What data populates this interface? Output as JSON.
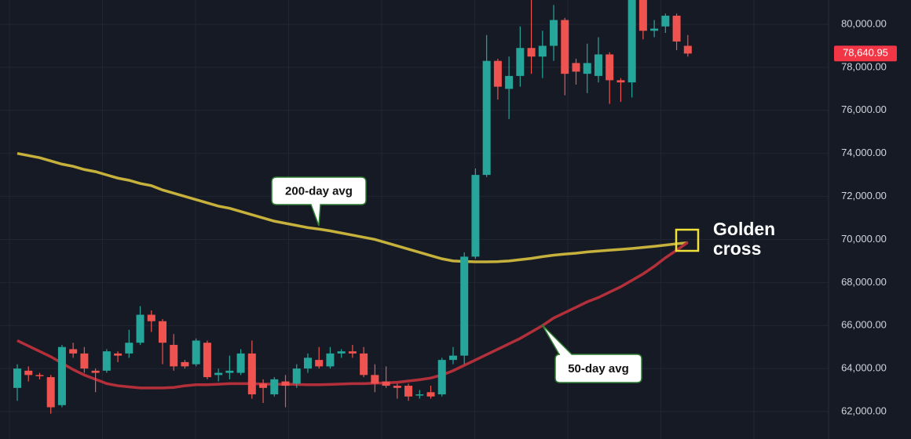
{
  "chart_data": {
    "type": "candlestick",
    "categories": [
      null,
      null,
      null,
      null,
      null,
      null,
      null,
      null,
      null,
      null,
      null,
      null,
      null,
      null,
      null,
      null,
      null,
      null,
      null,
      null,
      null,
      null,
      null,
      null,
      null,
      null,
      null,
      null,
      null,
      null,
      null,
      null,
      null,
      null,
      null,
      null,
      null,
      null,
      null,
      null,
      null,
      null,
      null,
      null,
      null,
      null,
      null,
      null,
      null,
      null,
      null,
      null,
      null,
      null,
      null,
      null,
      null,
      null,
      null,
      null,
      null
    ],
    "open": [
      63100,
      63900,
      63700,
      63600,
      62300,
      64900,
      64700,
      63900,
      63900,
      64700,
      64700,
      65200,
      66500,
      66200,
      65100,
      64300,
      64200,
      65200,
      63700,
      63800,
      63800,
      64700,
      63300,
      62800,
      63400,
      63300,
      64000,
      64400,
      64100,
      64700,
      64800,
      64700,
      63700,
      63400,
      63200,
      63200,
      62800,
      62900,
      62800,
      64400,
      64600,
      69200,
      73000,
      78300,
      77000,
      77600,
      78900,
      78500,
      79000,
      80200,
      78200,
      77700,
      77600,
      78600,
      77400,
      77300,
      81600,
      79700,
      79900,
      80400,
      79000
    ],
    "high": [
      64200,
      64100,
      63800,
      63700,
      65100,
      65200,
      65000,
      64000,
      64900,
      64800,
      65800,
      66900,
      66700,
      66300,
      65600,
      64400,
      65400,
      65300,
      64000,
      64600,
      64900,
      65300,
      63500,
      63600,
      63700,
      64200,
      64700,
      65000,
      65000,
      64900,
      65100,
      65000,
      64200,
      64100,
      63300,
      63300,
      63000,
      63200,
      64500,
      65000,
      69400,
      73300,
      79500,
      78400,
      78500,
      79900,
      81200,
      79700,
      80900,
      80300,
      78400,
      79100,
      79400,
      78700,
      77500,
      82000,
      81800,
      80200,
      80500,
      80500,
      79500
    ],
    "low": [
      62500,
      63400,
      63500,
      61900,
      62200,
      64500,
      63800,
      62900,
      63800,
      64300,
      64500,
      65100,
      65700,
      64200,
      63900,
      64000,
      64100,
      63500,
      63400,
      63500,
      63700,
      62600,
      62400,
      62700,
      62200,
      63100,
      63800,
      64000,
      64000,
      64500,
      64500,
      63600,
      62900,
      63100,
      62600,
      62500,
      62600,
      62600,
      62700,
      64200,
      64200,
      69100,
      72900,
      76500,
      75600,
      77100,
      77700,
      77500,
      78300,
      76700,
      77200,
      76800,
      77300,
      76300,
      76400,
      76600,
      79300,
      79400,
      79600,
      78800,
      78500
    ],
    "close": [
      64000,
      63700,
      63650,
      62200,
      65000,
      64700,
      64000,
      63800,
      64800,
      64600,
      65200,
      66500,
      66200,
      65200,
      64100,
      64100,
      65300,
      63600,
      63800,
      63900,
      64700,
      62800,
      63100,
      63500,
      63200,
      64000,
      64500,
      64100,
      64700,
      64800,
      64700,
      63700,
      63300,
      63200,
      63100,
      62700,
      62800,
      62700,
      64400,
      64600,
      69200,
      73000,
      78300,
      77100,
      77600,
      78900,
      78500,
      79000,
      80200,
      77700,
      77800,
      78200,
      78600,
      77400,
      77300,
      81600,
      79700,
      79800,
      80400,
      79200,
      78640.95
    ],
    "up_color": "#26a69a",
    "down_color": "#ef5350",
    "lines": [
      {
        "name": "200-day avg",
        "color": "#c6b13c",
        "values": [
          74000,
          73900,
          73800,
          73650,
          73500,
          73400,
          73250,
          73150,
          73000,
          72850,
          72750,
          72600,
          72500,
          72300,
          72150,
          72000,
          71850,
          71700,
          71550,
          71450,
          71300,
          71150,
          71000,
          70850,
          70750,
          70650,
          70550,
          70480,
          70400,
          70300,
          70200,
          70100,
          70000,
          69850,
          69700,
          69550,
          69400,
          69250,
          69100,
          69000,
          68980,
          68960,
          68960,
          68970,
          69000,
          69060,
          69120,
          69200,
          69270,
          69320,
          69360,
          69420,
          69460,
          69500,
          69540,
          69580,
          69630,
          69680,
          69740,
          69800,
          69850
        ]
      },
      {
        "name": "50-day avg",
        "color": "#b3303a",
        "values": [
          65300,
          65050,
          64800,
          64550,
          64250,
          63950,
          63700,
          63500,
          63300,
          63200,
          63150,
          63100,
          63100,
          63100,
          63120,
          63200,
          63250,
          63250,
          63270,
          63300,
          63300,
          63300,
          63280,
          63270,
          63270,
          63260,
          63250,
          63250,
          63260,
          63280,
          63300,
          63300,
          63320,
          63330,
          63360,
          63420,
          63480,
          63560,
          63700,
          63900,
          64150,
          64400,
          64650,
          64900,
          65150,
          65400,
          65700,
          66000,
          66350,
          66600,
          66850,
          67100,
          67300,
          67550,
          67800,
          68100,
          68400,
          68750,
          69150,
          69500,
          69870
        ]
      }
    ],
    "annotation": "Golden cross",
    "last_price": {
      "value": 78640.95,
      "label": "78,640.95"
    },
    "ylim": [
      60725,
      81130
    ],
    "yticks": [
      {
        "value": 62000,
        "label": "62,000.00"
      },
      {
        "value": 64000,
        "label": "64,000.00"
      },
      {
        "value": 66000,
        "label": "66,000.00"
      },
      {
        "value": 68000,
        "label": "68,000.00"
      },
      {
        "value": 70000,
        "label": "70,000.00"
      },
      {
        "value": 72000,
        "label": "72,000.00"
      },
      {
        "value": 74000,
        "label": "74,000.00"
      },
      {
        "value": 76000,
        "label": "76,000.00"
      },
      {
        "value": 78000,
        "label": "78,000.00"
      },
      {
        "value": 80000,
        "label": "80,000.00"
      }
    ],
    "grid": true
  }
}
